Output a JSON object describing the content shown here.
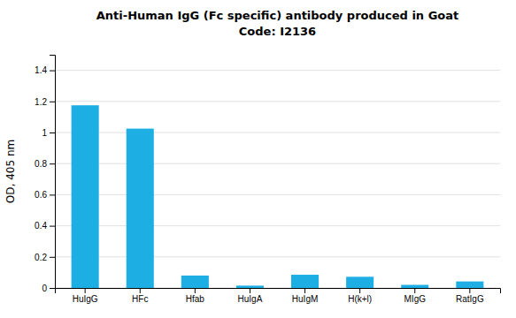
{
  "chart_data": {
    "type": "bar",
    "title": "Anti-Human IgG (Fc specific) antibody produced in Goat",
    "subtitle": "Code: I2136",
    "ylabel": "OD, 405 nm",
    "categories": [
      "HuIgG",
      "HFc",
      "Hfab",
      "HuIgA",
      "HuIgM",
      "H(k+l)",
      "MIgG",
      "RatIgG"
    ],
    "values": [
      1.175,
      1.025,
      0.08,
      0.015,
      0.085,
      0.072,
      0.02,
      0.042
    ],
    "color": "#1daee3",
    "ylim": [
      0,
      1.5
    ],
    "yticks": [
      0,
      0.2,
      0.4,
      0.6,
      0.8,
      1,
      1.2,
      1.4
    ],
    "grid": true
  }
}
